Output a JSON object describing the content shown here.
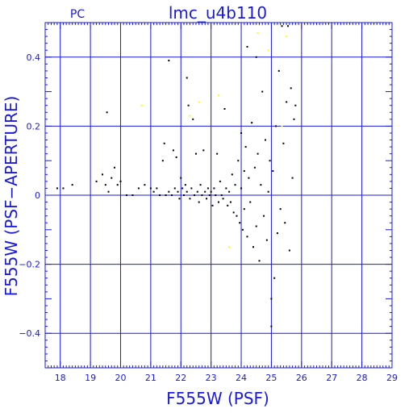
{
  "chart_data": {
    "type": "scatter",
    "title": "lmc_u4b110",
    "corner_label": "PC",
    "xlabel": "F555W (PSF)",
    "ylabel": "F555W (PSF−APERTURE)",
    "xlim": [
      17.5,
      29
    ],
    "ylim": [
      -0.5,
      0.5
    ],
    "x_ticks": [
      18,
      19,
      20,
      21,
      22,
      23,
      24,
      25,
      26,
      27,
      28,
      29
    ],
    "y_ticks": [
      0.4,
      0.2,
      0,
      -0.2,
      -0.4
    ],
    "y_tick_labels": [
      "0.4",
      "0.2",
      "0",
      "−0.2",
      "−0.4"
    ],
    "grid": true,
    "colors": {
      "axes": "#1a1adb",
      "points": "#000000",
      "highlight": "#ffff00"
    },
    "series": [
      {
        "color": "#000000",
        "points": [
          [
            17.9,
            0.02
          ],
          [
            18.1,
            0.02
          ],
          [
            18.4,
            0.03
          ],
          [
            19.2,
            0.04
          ],
          [
            19.4,
            0.06
          ],
          [
            19.5,
            0.03
          ],
          [
            19.55,
            0.24
          ],
          [
            19.6,
            0.01
          ],
          [
            19.7,
            0.05
          ],
          [
            19.8,
            0.08
          ],
          [
            19.9,
            0.03
          ],
          [
            20.0,
            0.04
          ],
          [
            20.2,
            0.0
          ],
          [
            20.4,
            0.0
          ],
          [
            20.6,
            0.02
          ],
          [
            20.8,
            0.03
          ],
          [
            21.0,
            0.02
          ],
          [
            21.1,
            0.01
          ],
          [
            21.2,
            0.02
          ],
          [
            21.3,
            0.0
          ],
          [
            21.4,
            0.1
          ],
          [
            21.45,
            0.15
          ],
          [
            21.5,
            0.0
          ],
          [
            21.6,
            0.01
          ],
          [
            21.6,
            0.39
          ],
          [
            21.7,
            0.0
          ],
          [
            21.75,
            0.13
          ],
          [
            21.8,
            0.02
          ],
          [
            21.85,
            0.11
          ],
          [
            21.9,
            0.01
          ],
          [
            21.95,
            -0.01
          ],
          [
            22.0,
            0.05
          ],
          [
            22.05,
            0.02
          ],
          [
            22.1,
            0.0
          ],
          [
            22.15,
            0.03
          ],
          [
            22.2,
            0.34
          ],
          [
            22.2,
            0.01
          ],
          [
            22.25,
            0.26
          ],
          [
            22.3,
            -0.01
          ],
          [
            22.35,
            0.02
          ],
          [
            22.4,
            0.22
          ],
          [
            22.45,
            0.0
          ],
          [
            22.5,
            0.12
          ],
          [
            22.55,
            0.01
          ],
          [
            22.6,
            -0.02
          ],
          [
            22.65,
            0.03
          ],
          [
            22.7,
            0.0
          ],
          [
            22.75,
            0.13
          ],
          [
            22.8,
            0.01
          ],
          [
            22.85,
            -0.01
          ],
          [
            22.9,
            0.02
          ],
          [
            22.95,
            0.0
          ],
          [
            23.0,
            0.01
          ],
          [
            23.05,
            -0.03
          ],
          [
            23.1,
            0.02
          ],
          [
            23.15,
            0.0
          ],
          [
            23.2,
            0.12
          ],
          [
            23.25,
            -0.02
          ],
          [
            23.3,
            0.04
          ],
          [
            23.35,
            0.0
          ],
          [
            23.4,
            -0.01
          ],
          [
            23.45,
            0.25
          ],
          [
            23.5,
            0.02
          ],
          [
            23.55,
            -0.03
          ],
          [
            23.6,
            0.01
          ],
          [
            23.65,
            -0.02
          ],
          [
            23.7,
            0.06
          ],
          [
            23.75,
            -0.05
          ],
          [
            23.8,
            0.03
          ],
          [
            23.85,
            -0.06
          ],
          [
            23.9,
            0.1
          ],
          [
            23.95,
            -0.08
          ],
          [
            24.0,
            0.18
          ],
          [
            24.0,
            0.02
          ],
          [
            24.05,
            -0.1
          ],
          [
            24.1,
            0.07
          ],
          [
            24.1,
            -0.04
          ],
          [
            24.15,
            0.14
          ],
          [
            24.2,
            0.43
          ],
          [
            24.2,
            -0.12
          ],
          [
            24.25,
            0.05
          ],
          [
            24.3,
            -0.02
          ],
          [
            24.35,
            0.21
          ],
          [
            24.4,
            -0.15
          ],
          [
            24.45,
            0.08
          ],
          [
            24.5,
            0.4
          ],
          [
            24.5,
            -0.09
          ],
          [
            24.55,
            0.12
          ],
          [
            24.6,
            -0.19
          ],
          [
            24.65,
            0.03
          ],
          [
            24.7,
            0.3
          ],
          [
            24.75,
            -0.06
          ],
          [
            24.8,
            0.16
          ],
          [
            24.85,
            -0.13
          ],
          [
            24.9,
            0.01
          ],
          [
            24.95,
            0.1
          ],
          [
            25.0,
            -0.38
          ],
          [
            25.0,
            -0.3
          ],
          [
            25.05,
            0.07
          ],
          [
            25.1,
            -0.24
          ],
          [
            25.15,
            0.2
          ],
          [
            25.2,
            -0.11
          ],
          [
            25.25,
            0.36
          ],
          [
            25.3,
            -0.04
          ],
          [
            25.35,
            0.49
          ],
          [
            25.4,
            0.15
          ],
          [
            25.45,
            -0.08
          ],
          [
            25.5,
            0.27
          ],
          [
            25.55,
            0.49
          ],
          [
            25.6,
            -0.16
          ],
          [
            25.65,
            0.31
          ],
          [
            25.7,
            0.05
          ],
          [
            25.75,
            0.22
          ],
          [
            25.8,
            0.26
          ]
        ]
      },
      {
        "color": "#ffff00",
        "points": [
          [
            20.7,
            0.26
          ],
          [
            22.3,
            0.23
          ],
          [
            22.6,
            0.27
          ],
          [
            23.25,
            0.29
          ],
          [
            23.6,
            -0.15
          ],
          [
            24.55,
            0.47
          ],
          [
            24.9,
            0.42
          ],
          [
            25.35,
            0.2
          ],
          [
            25.5,
            0.46
          ]
        ]
      }
    ]
  }
}
